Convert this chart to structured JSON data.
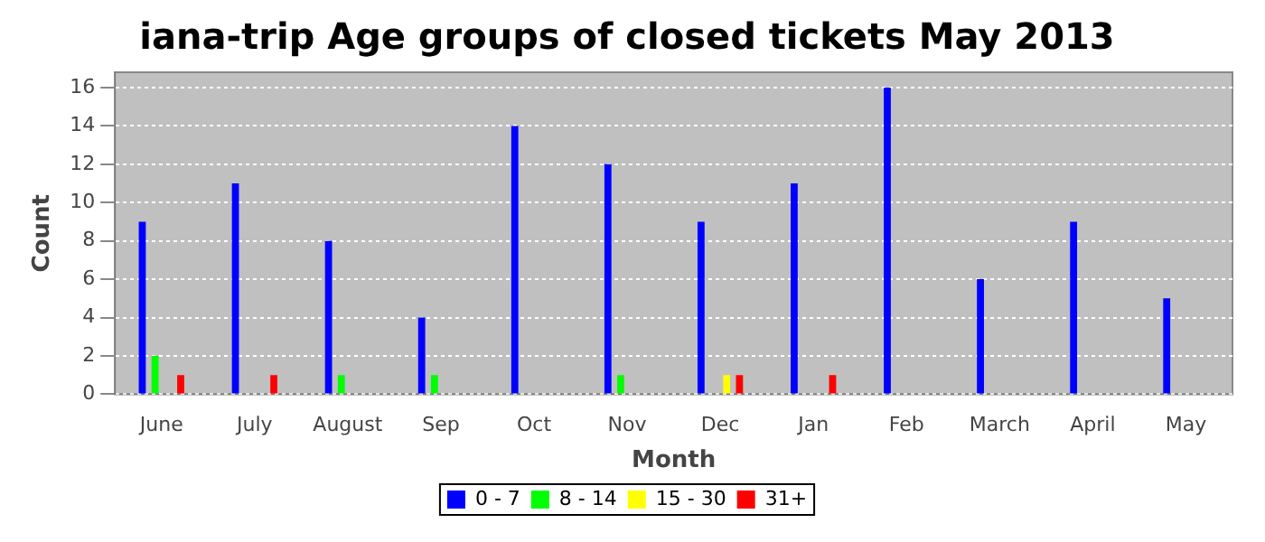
{
  "chart_data": {
    "type": "bar",
    "title": "iana-trip Age groups of closed tickets May 2013",
    "xlabel": "Month",
    "ylabel": "Count",
    "categories": [
      "June",
      "July",
      "August",
      "Sep",
      "Oct",
      "Nov",
      "Dec",
      "Jan",
      "Feb",
      "March",
      "April",
      "May"
    ],
    "series": [
      {
        "name": "0 - 7",
        "color": "#0000ff",
        "values": [
          9,
          11,
          8,
          4,
          14,
          12,
          9,
          11,
          16,
          6,
          9,
          5
        ]
      },
      {
        "name": "8 - 14",
        "color": "#00ff00",
        "values": [
          2,
          0,
          1,
          1,
          0,
          1,
          0,
          0,
          0,
          0,
          0,
          0
        ]
      },
      {
        "name": "15 - 30",
        "color": "#ffff00",
        "values": [
          0,
          0,
          0,
          0,
          0,
          0,
          1,
          0,
          0,
          0,
          0,
          0
        ]
      },
      {
        "name": "31+",
        "color": "#ff0000",
        "values": [
          1,
          1,
          0,
          0,
          0,
          0,
          1,
          1,
          0,
          0,
          0,
          0
        ]
      }
    ],
    "ylim": [
      0,
      16.8
    ],
    "yticks": [
      0,
      2,
      4,
      6,
      8,
      10,
      12,
      14,
      16
    ],
    "grid": "y",
    "legend": "bottom"
  }
}
